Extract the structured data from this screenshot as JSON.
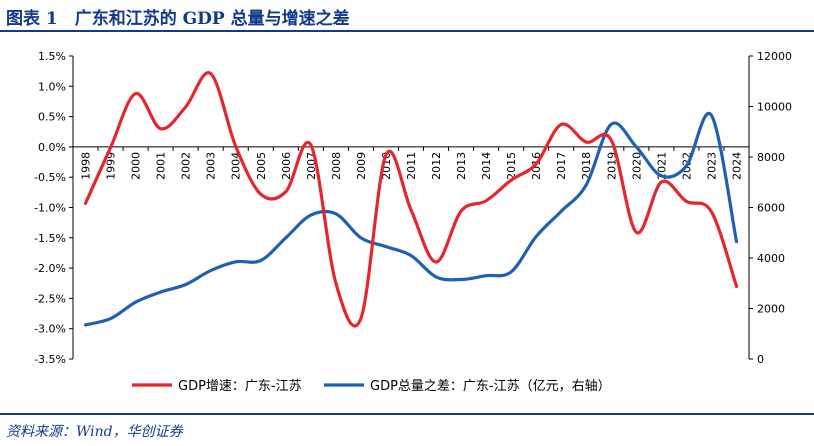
{
  "title": "图表 1　广东和江苏的 GDP 总量与增速之差",
  "source": "资料来源：Wind，华创证券",
  "colors": {
    "accent": "#123a8c",
    "series_red": "#e5262c",
    "series_blue": "#1f5fb4"
  },
  "chart_data": {
    "type": "line",
    "x": [
      "1998",
      "1999",
      "2000",
      "2001",
      "2002",
      "2003",
      "2004",
      "2005",
      "2006",
      "2007",
      "2008",
      "2009",
      "2010",
      "2011",
      "2012",
      "2013",
      "2014",
      "2015",
      "2016",
      "2017",
      "2018",
      "2019",
      "2020",
      "2021",
      "2022",
      "2023",
      "2024"
    ],
    "left_axis": {
      "ylim": [
        -0.035,
        0.015
      ],
      "ticks": [
        "1.5%",
        "1.0%",
        "0.5%",
        "0.0%",
        "-0.5%",
        "-1.0%",
        "-1.5%",
        "-2.0%",
        "-2.5%",
        "-3.0%",
        "-3.5%"
      ],
      "tick_values": [
        0.015,
        0.01,
        0.005,
        0,
        -0.005,
        -0.01,
        -0.015,
        -0.02,
        -0.025,
        -0.03,
        -0.035
      ]
    },
    "right_axis": {
      "ylim": [
        0,
        12000
      ],
      "ticks": [
        "12000",
        "10000",
        "8000",
        "6000",
        "4000",
        "2000",
        "0"
      ],
      "tick_values": [
        12000,
        10000,
        8000,
        6000,
        4000,
        2000,
        0
      ]
    },
    "series": [
      {
        "name": "GDP增速：广东-江苏",
        "axis": "left",
        "color": "#e5262c",
        "values": [
          -0.0093,
          -0.0001,
          0.0088,
          0.003,
          0.0066,
          0.0121,
          0.0001,
          -0.0078,
          -0.0074,
          0.0003,
          -0.0225,
          -0.0283,
          -0.0013,
          -0.0104,
          -0.019,
          -0.0106,
          -0.0089,
          -0.0055,
          -0.0028,
          0.0037,
          0.0008,
          0.0011,
          -0.0141,
          -0.0058,
          -0.009,
          -0.0107,
          -0.023
        ]
      },
      {
        "name": "GDP总量之差：广东-江苏（亿元，右轴）",
        "axis": "right",
        "color": "#1f5fb4",
        "values": [
          1350,
          1600,
          2250,
          2650,
          2950,
          3500,
          3850,
          3900,
          4800,
          5700,
          5750,
          4800,
          4450,
          4100,
          3250,
          3150,
          3300,
          3450,
          4850,
          5850,
          6900,
          9300,
          8400,
          7250,
          7650,
          9650,
          4650
        ]
      }
    ],
    "legend_position": "bottom",
    "grid": false
  }
}
